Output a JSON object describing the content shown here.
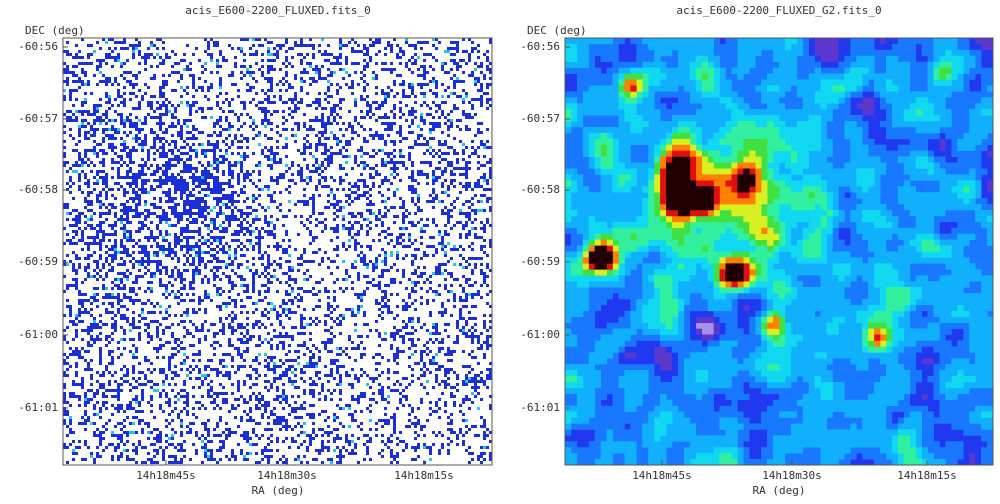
{
  "panels": [
    {
      "title": "acis_E600-2200_FLUXED.fits_0",
      "y_axis_label": "DEC (deg)",
      "x_axis_label": "RA (deg)",
      "y_tick_labels": [
        "-60:56",
        "-60:57",
        "-60:58",
        "-60:59",
        "-61:00",
        "-61:01"
      ],
      "x_tick_labels": [
        "14h18m45s",
        "14h18m30s",
        "14h18m15s"
      ]
    },
    {
      "title": "acis_E600-2200_FLUXED_G2.fits_0",
      "y_axis_label": "DEC (deg)",
      "x_axis_label": "RA (deg)",
      "y_tick_labels": [
        "-60:56",
        "-60:57",
        "-60:58",
        "-60:59",
        "-61:00",
        "-61:01"
      ],
      "x_tick_labels": [
        "14h18m45s",
        "14h18m30s",
        "14h18m15s"
      ]
    }
  ]
}
